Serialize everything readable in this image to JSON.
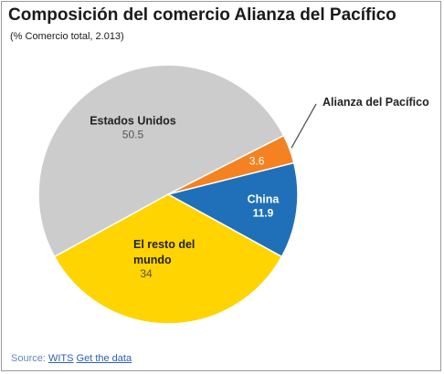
{
  "title": "Composición del comercio Alianza del Pacífico",
  "subtitle": "(% Comercio total, 2.013)",
  "chart_data": {
    "type": "pie",
    "title": "Composición del comercio Alianza del Pacífico",
    "subtitle": "(% Comercio total, 2.013)",
    "slices": [
      {
        "label": "Alianza del Pacífico",
        "value": 3.6,
        "value_label": "3.6",
        "color": "#f58220"
      },
      {
        "label": "China",
        "value": 11.9,
        "value_label": "11.9",
        "color": "#1f70b8"
      },
      {
        "label": "El resto del mundo",
        "value": 34,
        "value_label": "34",
        "color": "#ffd400"
      },
      {
        "label": "Estados Unidos",
        "value": 50.5,
        "value_label": "50.5",
        "color": "#cccccc"
      }
    ]
  },
  "footer": {
    "source_label": "Source:",
    "source_link": "WITS",
    "data_link": "Get the data"
  }
}
